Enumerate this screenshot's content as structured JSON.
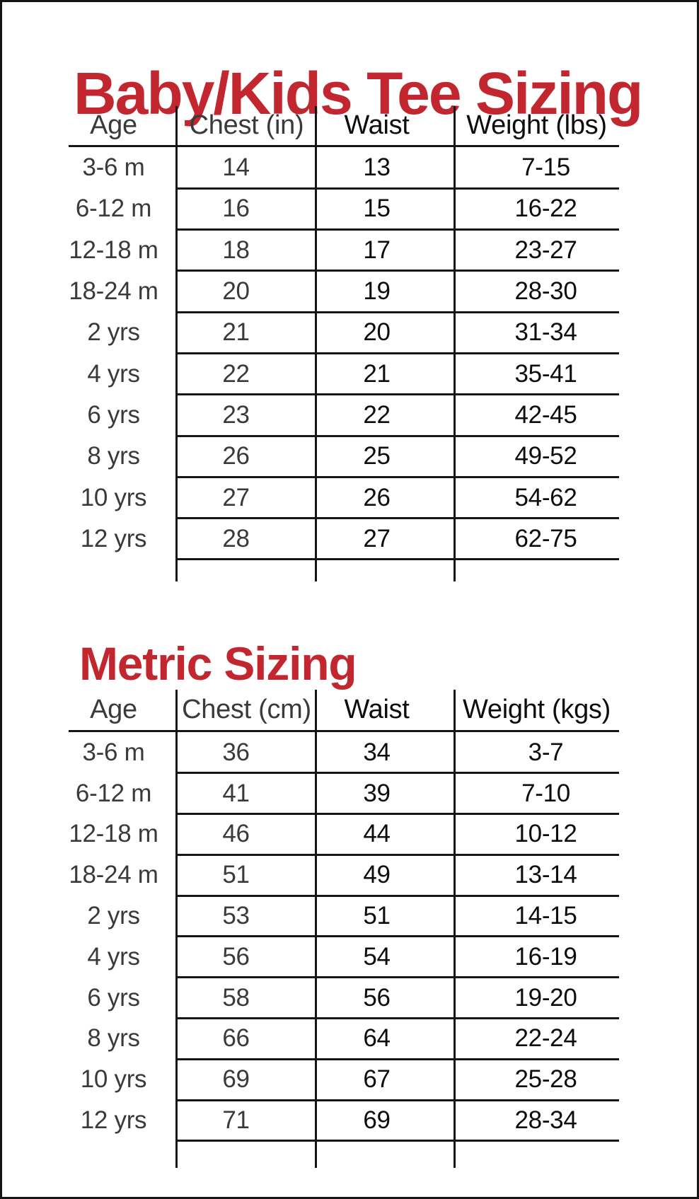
{
  "page": {
    "background": "#ffffff",
    "line_color": "#161616",
    "title_color": "#c2262e"
  },
  "tables": [
    {
      "title": "Baby/Kids Tee Sizing",
      "columns": [
        "Age",
        "Chest (in)",
        "Waist",
        "Weight (lbs)"
      ],
      "rows": [
        [
          "3-6 m",
          "14",
          "13",
          "7-15"
        ],
        [
          "6-12 m",
          "16",
          "15",
          "16-22"
        ],
        [
          "12-18 m",
          "18",
          "17",
          "23-27"
        ],
        [
          "18-24 m",
          "20",
          "19",
          "28-30"
        ],
        [
          "2 yrs",
          "21",
          "20",
          "31-34"
        ],
        [
          "4 yrs",
          "22",
          "21",
          "35-41"
        ],
        [
          "6 yrs",
          "23",
          "22",
          "42-45"
        ],
        [
          "8 yrs",
          "26",
          "25",
          "49-52"
        ],
        [
          "10 yrs",
          "27",
          "26",
          "54-62"
        ],
        [
          "12 yrs",
          "28",
          "27",
          "62-75"
        ]
      ]
    },
    {
      "title": "Metric Sizing",
      "columns": [
        "Age",
        "Chest (cm)",
        "Waist",
        "Weight (kgs)"
      ],
      "rows": [
        [
          "3-6 m",
          "36",
          "34",
          "3-7"
        ],
        [
          "6-12 m",
          "41",
          "39",
          "7-10"
        ],
        [
          "12-18 m",
          "46",
          "44",
          "10-12"
        ],
        [
          "18-24 m",
          "51",
          "49",
          "13-14"
        ],
        [
          "2 yrs",
          "53",
          "51",
          "14-15"
        ],
        [
          "4 yrs",
          "56",
          "54",
          "16-19"
        ],
        [
          "6 yrs",
          "58",
          "56",
          "19-20"
        ],
        [
          "8 yrs",
          "66",
          "64",
          "22-24"
        ],
        [
          "10 yrs",
          "69",
          "67",
          "25-28"
        ],
        [
          "12 yrs",
          "71",
          "69",
          "28-34"
        ]
      ]
    }
  ]
}
